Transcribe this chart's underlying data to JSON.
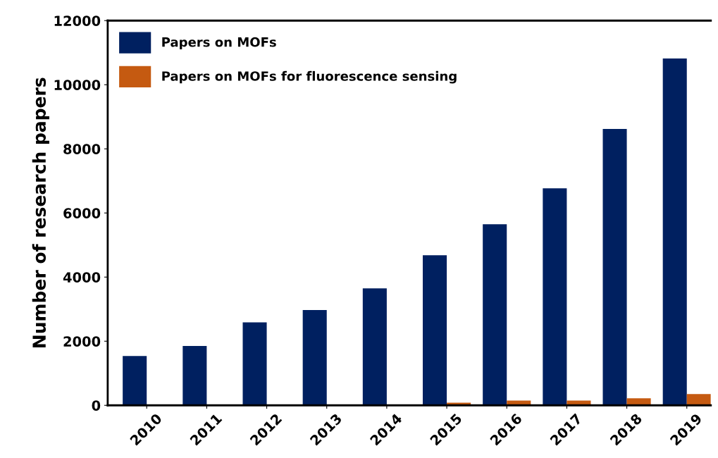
{
  "chart_data": {
    "type": "bar",
    "ylabel": "Number of research papers",
    "categories": [
      "2010",
      "2011",
      "2012",
      "2013",
      "2014",
      "2015",
      "2016",
      "2017",
      "2018",
      "2019"
    ],
    "series": [
      {
        "name": "Papers on MOFs",
        "color": "#002060",
        "values": [
          1540,
          1850,
          2590,
          2970,
          3650,
          4680,
          5650,
          6770,
          8620,
          10820
        ]
      },
      {
        "name": "Papers on MOFs for fluorescence sensing",
        "color": "#c55a11",
        "values": [
          null,
          null,
          null,
          null,
          null,
          80,
          150,
          150,
          220,
          350
        ]
      }
    ],
    "ylim": [
      0,
      12000
    ],
    "yticks": [
      0,
      2000,
      4000,
      6000,
      8000,
      10000,
      12000
    ],
    "grid": false,
    "legend": "top left"
  }
}
